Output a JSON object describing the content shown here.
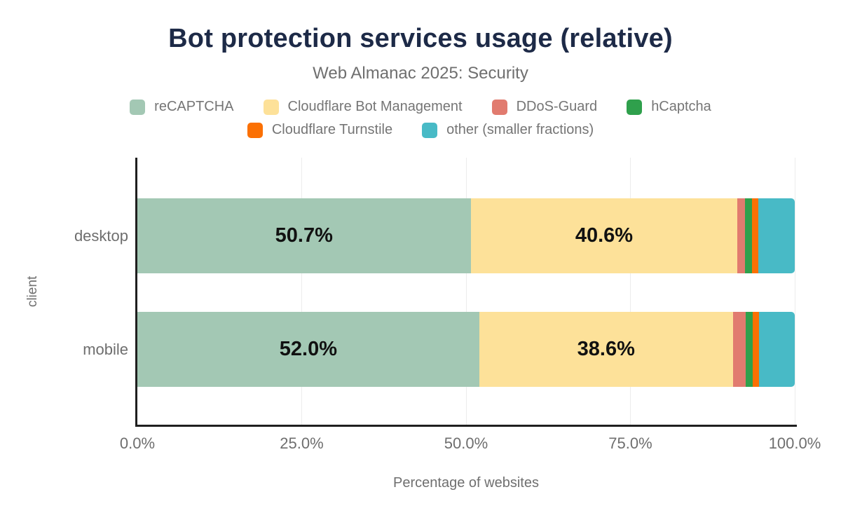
{
  "chart_data": {
    "type": "bar",
    "orientation": "horizontal",
    "stacked": true,
    "title": "Bot protection services usage (relative)",
    "subtitle": "Web Almanac 2025: Security",
    "xlabel": "Percentage of websites",
    "ylabel": "client",
    "categories": [
      "desktop",
      "mobile"
    ],
    "series": [
      {
        "name": "reCAPTCHA",
        "color": "#a3c8b4",
        "values": [
          50.7,
          52.0
        ]
      },
      {
        "name": "Cloudflare Bot Management",
        "color": "#fde199",
        "values": [
          40.6,
          38.6
        ]
      },
      {
        "name": "DDoS-Guard",
        "color": "#e17b6f",
        "values": [
          1.1,
          1.9
        ]
      },
      {
        "name": "hCaptcha",
        "color": "#2fa04c",
        "values": [
          1.1,
          1.1
        ]
      },
      {
        "name": "Cloudflare Turnstile",
        "color": "#fb7003",
        "values": [
          1.0,
          1.0
        ]
      },
      {
        "name": "other (smaller fractions)",
        "color": "#48bac6",
        "values": [
          5.5,
          5.4
        ]
      }
    ],
    "data_labels": [
      [
        "50.7%",
        "40.6%",
        "",
        "",
        "",
        ""
      ],
      [
        "52.0%",
        "38.6%",
        "",
        "",
        "",
        ""
      ]
    ],
    "x_ticks": [
      {
        "label": "0.0%",
        "value": 0
      },
      {
        "label": "25.0%",
        "value": 25
      },
      {
        "label": "50.0%",
        "value": 50
      },
      {
        "label": "75.0%",
        "value": 75
      },
      {
        "label": "100.0%",
        "value": 100
      }
    ],
    "xlim": [
      0,
      100
    ],
    "grid": true,
    "legend_position": "top",
    "legend_rows": [
      [
        0,
        1,
        2,
        3
      ],
      [
        4,
        5
      ]
    ]
  }
}
